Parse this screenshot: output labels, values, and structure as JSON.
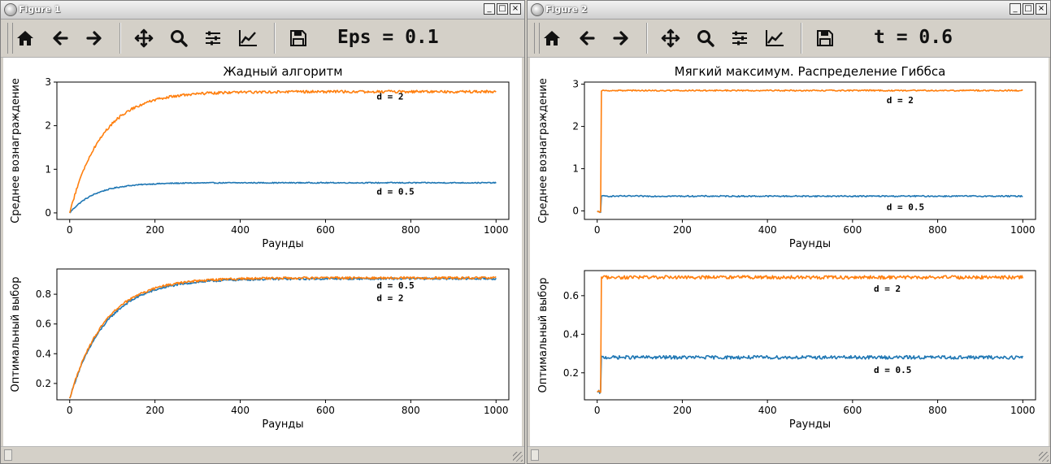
{
  "windows": [
    {
      "title": "Figure 1",
      "message": "Eps = 0.1",
      "charts": [
        {
          "title": "Жадный алгоритм",
          "xlabel": "Раунды",
          "ylabel": "Среднее вознаграждение",
          "xticks": [
            "0",
            "200",
            "400",
            "600",
            "800",
            "1000"
          ],
          "yticks": [
            "0",
            "1",
            "2",
            "3"
          ]
        },
        {
          "title": "",
          "xlabel": "Раунды",
          "ylabel": "Оптимальный выбор",
          "xticks": [
            "0",
            "200",
            "400",
            "600",
            "800",
            "1000"
          ],
          "yticks": [
            "0.2",
            "0.4",
            "0.6",
            "0.8"
          ]
        }
      ]
    },
    {
      "title": "Figure 2",
      "message": "t = 0.6",
      "charts": [
        {
          "title": "Мягкий максимум. Распределение Гиббса",
          "xlabel": "Раунды",
          "ylabel": "Среднее вознаграждение",
          "xticks": [
            "0",
            "200",
            "400",
            "600",
            "800",
            "1000"
          ],
          "yticks": [
            "0",
            "1",
            "2",
            "3"
          ]
        },
        {
          "title": "",
          "xlabel": "Раунды",
          "ylabel": "Оптимальный выбор",
          "xticks": [
            "0",
            "200",
            "400",
            "600",
            "800",
            "1000"
          ],
          "yticks": [
            "0.2",
            "0.4",
            "0.6"
          ]
        }
      ]
    }
  ],
  "toolbar_icons": [
    "home-icon",
    "back-arrow-icon",
    "forward-arrow-icon",
    "pan-move-icon",
    "zoom-icon",
    "configure-subplots-icon",
    "edit-axes-icon",
    "save-icon"
  ],
  "window_buttons": [
    "_",
    "□",
    "×"
  ],
  "colors": {
    "series_blue": "#1f77b4",
    "series_orange": "#ff7f0e"
  },
  "chart_data": [
    {
      "type": "line",
      "title": "Жадный алгоритм",
      "xlabel": "Раунды",
      "ylabel": "Среднее вознаграждение",
      "xlim": [
        -30,
        1030
      ],
      "ylim": [
        -0.15,
        3.0
      ],
      "grid": false,
      "series": [
        {
          "label": "d = 0.5",
          "color": "#1f77b4",
          "model": "rise",
          "start": 0.0,
          "plateau": 0.69,
          "tau": 60,
          "noise": 0.012,
          "label_x": 720,
          "label_y": 0.42
        },
        {
          "label": "d = 2",
          "color": "#ff7f0e",
          "model": "rise",
          "start": 0.0,
          "plateau": 2.78,
          "tau": 75,
          "noise": 0.03,
          "label_x": 720,
          "label_y": 2.6
        }
      ]
    },
    {
      "type": "line",
      "title": "",
      "xlabel": "Раунды",
      "ylabel": "Оптимальный выбор",
      "xlim": [
        -30,
        1030
      ],
      "ylim": [
        0.09,
        0.97
      ],
      "grid": false,
      "series": [
        {
          "label": "d = 0.5",
          "color": "#1f77b4",
          "model": "rise",
          "start": 0.1,
          "plateau": 0.905,
          "tau": 85,
          "noise": 0.007,
          "label_x": 720,
          "label_y": 0.84
        },
        {
          "label": "d = 2",
          "color": "#ff7f0e",
          "model": "rise",
          "start": 0.1,
          "plateau": 0.91,
          "tau": 82,
          "noise": 0.008,
          "label_x": 720,
          "label_y": 0.755
        }
      ]
    },
    {
      "type": "line",
      "title": "Мягкий максимум. Распределение Гиббса",
      "xlabel": "Раунды",
      "ylabel": "Среднее вознаграждение",
      "xlim": [
        -30,
        1030
      ],
      "ylim": [
        -0.2,
        3.05
      ],
      "grid": false,
      "series": [
        {
          "label": "d = 0.5",
          "color": "#1f77b4",
          "model": "step",
          "start": -0.02,
          "step_at": 10,
          "plateau": 0.35,
          "noise": 0.015,
          "label_x": 680,
          "label_y": 0.02
        },
        {
          "label": "d = 2",
          "color": "#ff7f0e",
          "model": "step",
          "start": -0.02,
          "step_at": 10,
          "plateau": 2.85,
          "noise": 0.015,
          "label_x": 680,
          "label_y": 2.55
        }
      ]
    },
    {
      "type": "line",
      "title": "",
      "xlabel": "Раунды",
      "ylabel": "Оптимальный выбор",
      "xlim": [
        -30,
        1030
      ],
      "ylim": [
        0.06,
        0.73
      ],
      "grid": false,
      "series": [
        {
          "label": "d = 0.5",
          "color": "#1f77b4",
          "model": "step",
          "start": 0.1,
          "step_at": 10,
          "plateau": 0.28,
          "noise": 0.009,
          "label_x": 650,
          "label_y": 0.2
        },
        {
          "label": "d = 2",
          "color": "#ff7f0e",
          "model": "step",
          "start": 0.1,
          "step_at": 10,
          "plateau": 0.695,
          "noise": 0.009,
          "label_x": 650,
          "label_y": 0.62
        }
      ]
    }
  ]
}
